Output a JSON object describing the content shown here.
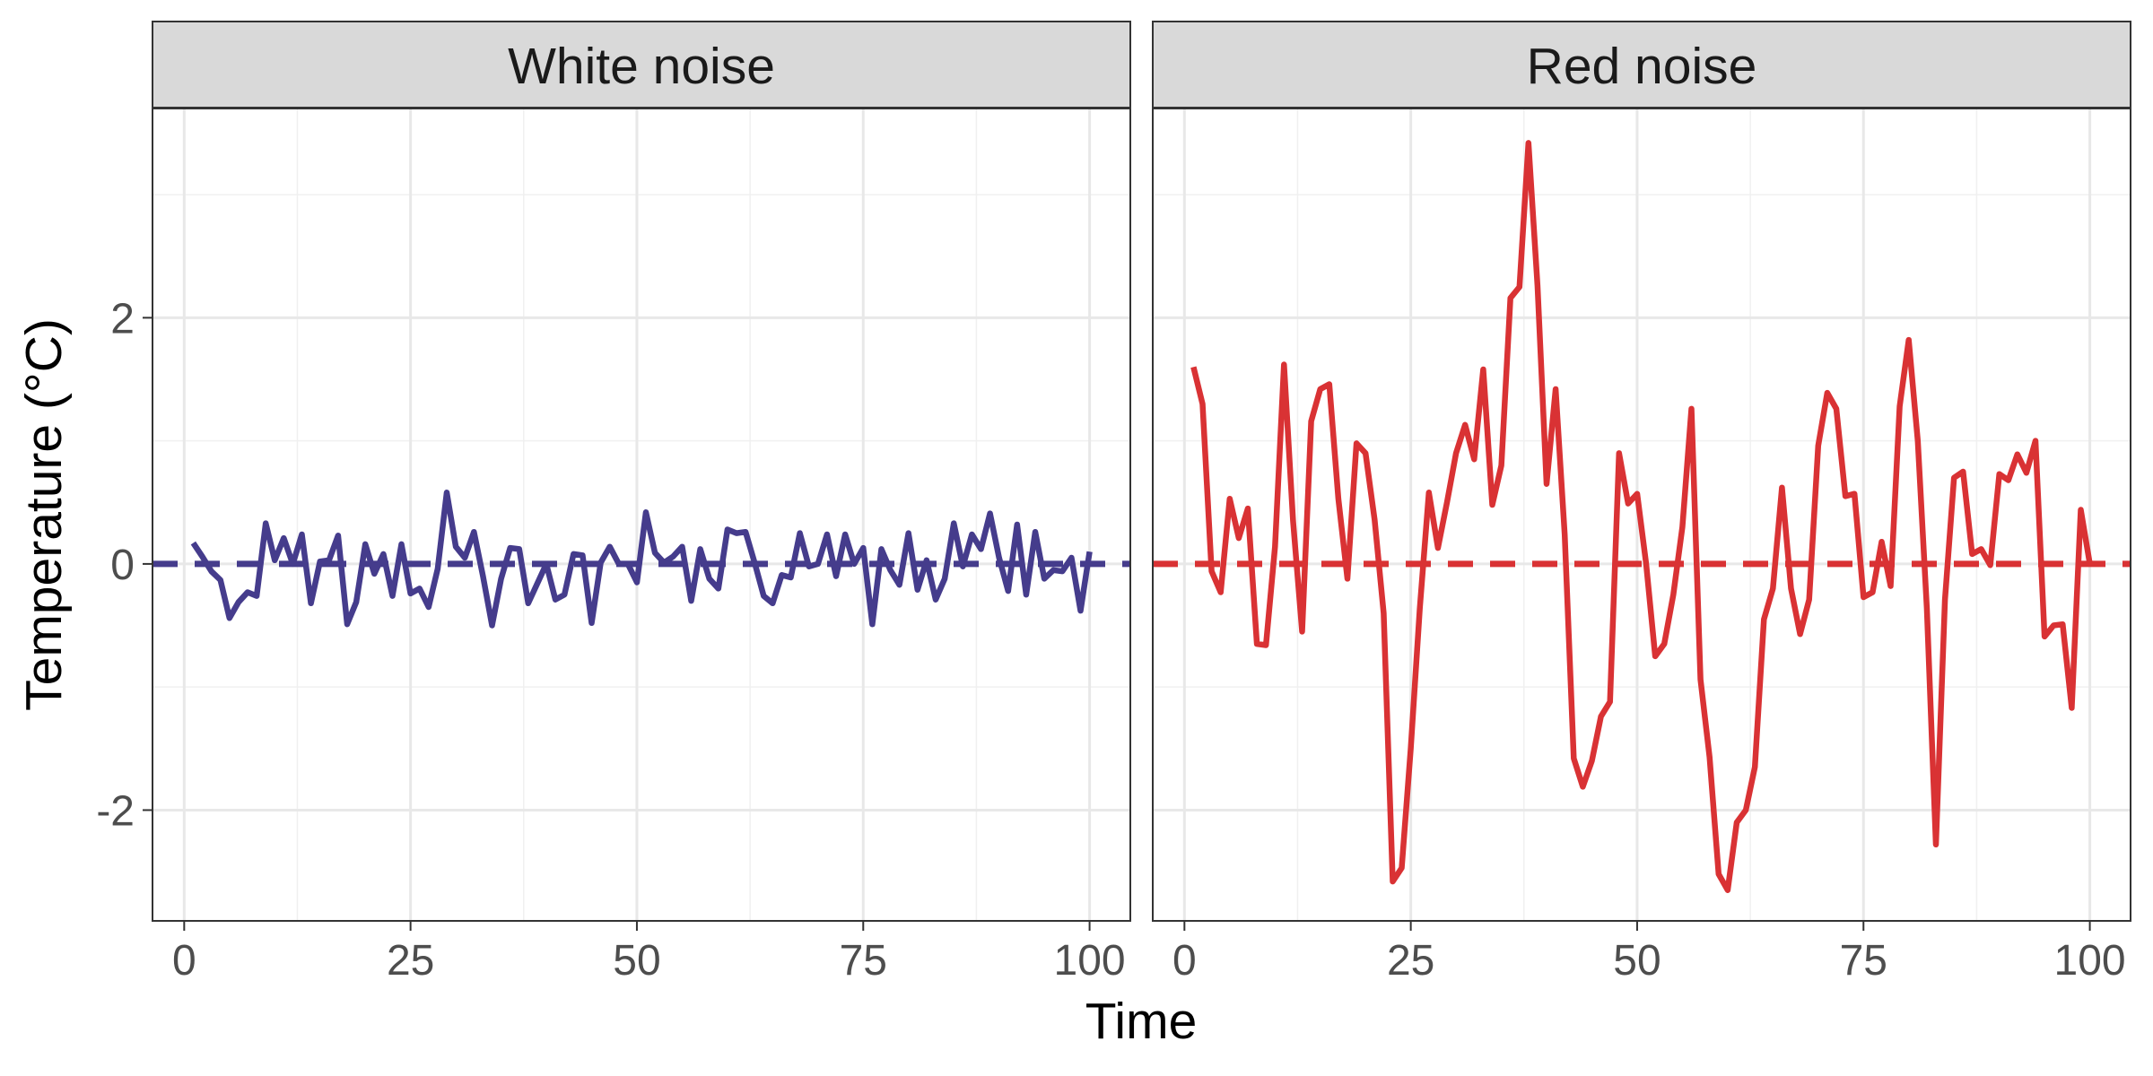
{
  "chart_data": {
    "type": "line",
    "xlabel": "Time",
    "ylabel": "Temperature (°C)",
    "xlim": [
      -3.5,
      104.5
    ],
    "ylim": [
      -2.9,
      3.7
    ],
    "x_ticks": [
      0,
      25,
      50,
      75,
      100
    ],
    "x_tick_labels": [
      "0",
      "25",
      "50",
      "75",
      "100"
    ],
    "y_ticks": [
      -2,
      0,
      2
    ],
    "y_tick_labels": [
      "-2",
      "0",
      "2"
    ],
    "grid": true,
    "reference_line": {
      "y": 0,
      "style": "dashed"
    },
    "facets": [
      {
        "name": "White noise",
        "color": "#453C8C",
        "x_start": 1,
        "values": [
          0.17,
          0.06,
          -0.06,
          -0.13,
          -0.44,
          -0.31,
          -0.23,
          -0.26,
          0.33,
          0.03,
          0.21,
          0.0,
          0.24,
          -0.32,
          0.02,
          0.03,
          0.23,
          -0.49,
          -0.31,
          0.16,
          -0.08,
          0.08,
          -0.26,
          0.16,
          -0.24,
          -0.2,
          -0.35,
          -0.04,
          0.58,
          0.14,
          0.05,
          0.26,
          -0.1,
          -0.5,
          -0.12,
          0.13,
          0.12,
          -0.32,
          -0.16,
          0.0,
          -0.29,
          -0.25,
          0.08,
          0.07,
          -0.48,
          0.01,
          0.14,
          0.0,
          0.0,
          -0.15,
          0.42,
          0.09,
          0.01,
          0.06,
          0.14,
          -0.3,
          0.12,
          -0.12,
          -0.2,
          0.28,
          0.25,
          0.26,
          0.01,
          -0.26,
          -0.32,
          -0.09,
          -0.11,
          0.25,
          -0.02,
          0.0,
          0.24,
          -0.1,
          0.24,
          0.0,
          0.13,
          -0.49,
          0.12,
          -0.05,
          -0.17,
          0.25,
          -0.21,
          0.03,
          -0.29,
          -0.12,
          0.33,
          -0.02,
          0.24,
          0.12,
          0.41,
          0.05,
          -0.22,
          0.32,
          -0.25,
          0.26,
          -0.12,
          -0.05,
          -0.06,
          0.05,
          -0.38,
          0.1
        ]
      },
      {
        "name": "Red noise",
        "color": "#D93234",
        "x_start": 1,
        "values": [
          1.6,
          1.3,
          -0.06,
          -0.23,
          0.53,
          0.21,
          0.45,
          -0.65,
          -0.66,
          0.14,
          1.62,
          0.35,
          -0.55,
          1.16,
          1.42,
          1.46,
          0.53,
          -0.12,
          0.98,
          0.9,
          0.36,
          -0.4,
          -2.58,
          -2.47,
          -1.5,
          -0.36,
          0.58,
          0.13,
          0.5,
          0.9,
          1.13,
          0.85,
          1.58,
          0.48,
          0.8,
          2.16,
          2.25,
          3.42,
          2.26,
          0.65,
          1.42,
          0.24,
          -1.58,
          -1.81,
          -1.6,
          -1.24,
          -1.12,
          0.9,
          0.49,
          0.57,
          0.0,
          -0.75,
          -0.65,
          -0.25,
          0.3,
          1.26,
          -0.94,
          -1.57,
          -2.52,
          -2.65,
          -2.1,
          -2.0,
          -1.65,
          -0.45,
          -0.2,
          0.62,
          -0.2,
          -0.57,
          -0.29,
          0.96,
          1.39,
          1.26,
          0.55,
          0.57,
          -0.27,
          -0.23,
          0.18,
          -0.18,
          1.28,
          1.82,
          1.0,
          -0.36,
          -2.28,
          -0.29,
          0.7,
          0.75,
          0.08,
          0.12,
          -0.01,
          0.73,
          0.68,
          0.89,
          0.74,
          1.0,
          -0.59,
          -0.5,
          -0.49,
          -1.17,
          0.44,
          0.0
        ]
      }
    ]
  }
}
